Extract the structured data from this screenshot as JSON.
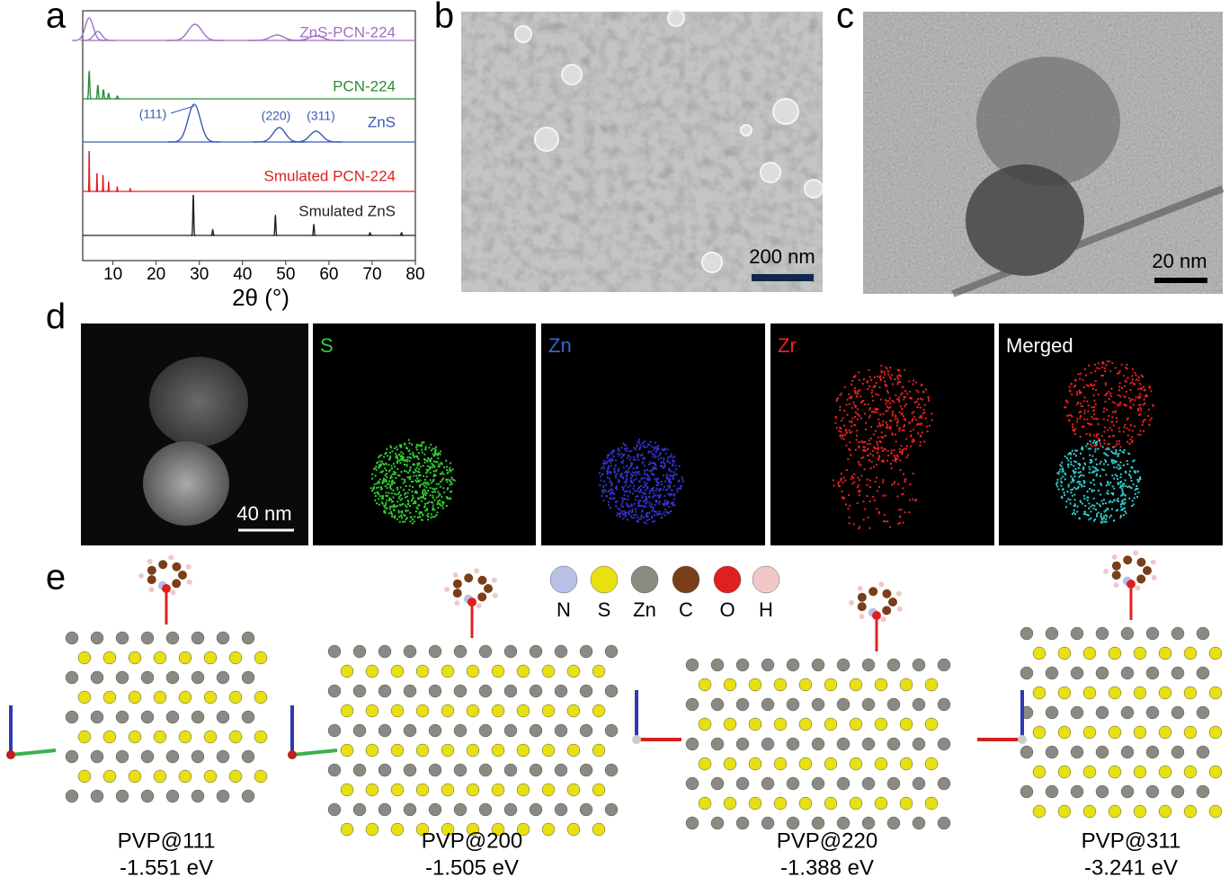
{
  "panels": {
    "a": "a",
    "b": "b",
    "c": "c",
    "d": "d",
    "e": "e"
  },
  "xrd": {
    "type": "line",
    "xlabel": "2θ  (°)",
    "xlim": [
      3,
      80
    ],
    "xticks": [
      10,
      20,
      30,
      40,
      50,
      60,
      70,
      80
    ],
    "series": [
      {
        "name": "ZnS-PCN-224",
        "color": "#a070c0",
        "x": [
          4.5,
          6.5,
          29,
          48,
          57
        ],
        "values": [
          25,
          10,
          18,
          6,
          5
        ]
      },
      {
        "name": "PCN-224",
        "color": "#2a8a3a",
        "x": [
          4.5,
          6.5,
          7.8,
          9,
          11
        ],
        "values": [
          30,
          15,
          10,
          6,
          3
        ]
      },
      {
        "name": "ZnS",
        "color": "#3a5ab0",
        "x": [
          28.8,
          48.5,
          57
        ],
        "values": [
          42,
          16,
          12
        ]
      },
      {
        "name": "Smulated PCN-224",
        "color": "#e02020",
        "x": [
          4.5,
          6.3,
          7.7,
          9,
          11,
          14
        ],
        "values": [
          45,
          20,
          18,
          10,
          5,
          3
        ]
      },
      {
        "name": "Smulated ZnS",
        "color": "#222222",
        "x": [
          28.6,
          33.1,
          47.6,
          56.5,
          69.5,
          76.8
        ],
        "values": [
          45,
          6,
          22,
          12,
          3,
          3
        ]
      }
    ],
    "annotations": [
      "(111)",
      "(220)",
      "(311)"
    ]
  },
  "sem": {
    "scale_bar": "200 nm"
  },
  "tem": {
    "scale_bar": "20 nm"
  },
  "mapping": {
    "scale_bar": "40 nm",
    "channels": [
      "S",
      "Zn",
      "Zr",
      "Merged"
    ]
  },
  "legend": [
    "N",
    "S",
    "Zn",
    "C",
    "O",
    "H"
  ],
  "structures": [
    {
      "label": "PVP@111",
      "energy": "-1.551 eV"
    },
    {
      "label": "PVP@200",
      "energy": "-1.505 eV"
    },
    {
      "label": "PVP@220",
      "energy": "-1.388 eV"
    },
    {
      "label": "PVP@311",
      "energy": "-3.241 eV"
    }
  ]
}
